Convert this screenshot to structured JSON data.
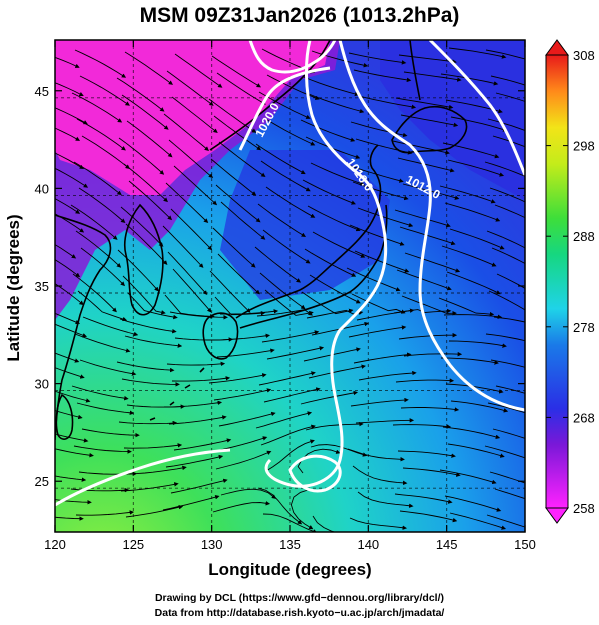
{
  "title": "MSM 09Z31Jan2026 (1013.2hPa)",
  "axes": {
    "xlabel": "Longitude (degrees)",
    "ylabel": "Latitude  (degrees)",
    "xticks": [
      120,
      125,
      130,
      135,
      140,
      145,
      150
    ],
    "yticks": [
      25,
      30,
      35,
      40,
      45
    ],
    "xlim": [
      120,
      150
    ],
    "ylim": [
      22.4,
      47.6
    ]
  },
  "colorbar": {
    "ticks": [
      258,
      268,
      278,
      288,
      298,
      308
    ],
    "range": [
      258,
      308
    ],
    "colors": [
      "#ff22ff",
      "#5a12c8",
      "#1a3fe6",
      "#1fd3e8",
      "#16d760",
      "#e8ee10",
      "#ff8a1a",
      "#e81a1a"
    ]
  },
  "contours": {
    "labels": [
      "1020.0",
      "1016.0",
      "1012.0"
    ],
    "color": "#ffffff"
  },
  "credits": {
    "line1": "Drawing by DCL (https://www.gfd−dennou.org/library/dcl/)",
    "line2": "Data from http://database.rish.kyoto−u.ac.jp/arch/jmadata/"
  }
}
